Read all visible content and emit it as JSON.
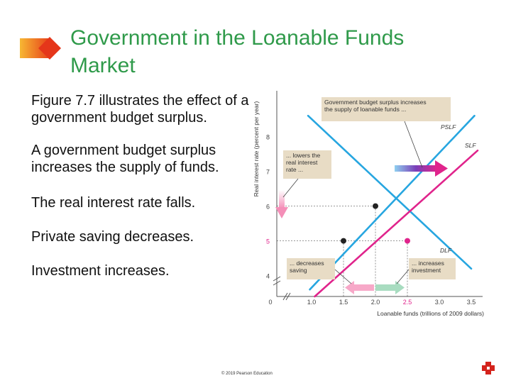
{
  "slide": {
    "title_lines": [
      "Government in the Loanable Funds",
      "Market"
    ],
    "bullets": [
      "Figure 7.7 illustrates the effect of a government budget surplus.",
      "A government budget surplus increases the supply of funds.",
      "The real interest rate falls.",
      "Private saving decreases.",
      "Investment increases."
    ],
    "copyright": "© 2019 Pearson Education"
  },
  "colors": {
    "title": "#2f9a4a",
    "demand": "#27a6e0",
    "supply_old": "#e0248c",
    "callout_bg": "#e8dcc5",
    "arrow_supply": "#7a3fb8",
    "arrow_pink": "#f7a8c8",
    "arrow_green": "#a8dcc0"
  },
  "chart_data": {
    "type": "line",
    "ylabel": "Real interest rate (percent per year)",
    "xlabel": "Loanable funds (trillions of 2009 dollars)",
    "x_ticks": [
      "0",
      "1.0",
      "1.5",
      "2.0",
      "2.5",
      "3.0",
      "3.5"
    ],
    "y_ticks": [
      "4",
      "5",
      "6",
      "7",
      "8"
    ],
    "xlim": [
      0,
      3.7
    ],
    "ylim": [
      3.2,
      8.8
    ],
    "series": [
      {
        "name": "DLF",
        "color": "#27a6e0",
        "points": [
          [
            0.9,
            8.6
          ],
          [
            3.5,
            4.2
          ]
        ]
      },
      {
        "name": "SLF",
        "color": "#e0248c",
        "points": [
          [
            1.05,
            3.4
          ],
          [
            3.6,
            7.6
          ]
        ]
      },
      {
        "name": "PSLF",
        "color": "#27a6e0",
        "points": [
          [
            0.95,
            3.6
          ],
          [
            3.55,
            8.6
          ]
        ]
      }
    ],
    "points": [
      {
        "x": 1.5,
        "y": 5,
        "color": "#222"
      },
      {
        "x": 2.0,
        "y": 6,
        "color": "#222"
      },
      {
        "x": 2.5,
        "y": 5,
        "color": "#e0248c"
      }
    ],
    "reference_lines": [
      {
        "from": [
          0,
          6
        ],
        "to": [
          2.0,
          6
        ]
      },
      {
        "from": [
          0,
          5
        ],
        "to": [
          2.5,
          5
        ]
      },
      {
        "from": [
          1.5,
          5
        ],
        "to": [
          1.5,
          3.2
        ]
      },
      {
        "from": [
          2.0,
          6
        ],
        "to": [
          2.0,
          3.2
        ]
      },
      {
        "from": [
          2.5,
          5
        ],
        "to": [
          2.5,
          3.2
        ]
      }
    ],
    "annotations": [
      "Government budget surplus increases the supply of loanable funds ...",
      "... lowers the real interest rate ...",
      "... decreases saving",
      "... increases investment"
    ],
    "highlighted_tick_labels": {
      "y": "5",
      "x": "2.5"
    }
  }
}
